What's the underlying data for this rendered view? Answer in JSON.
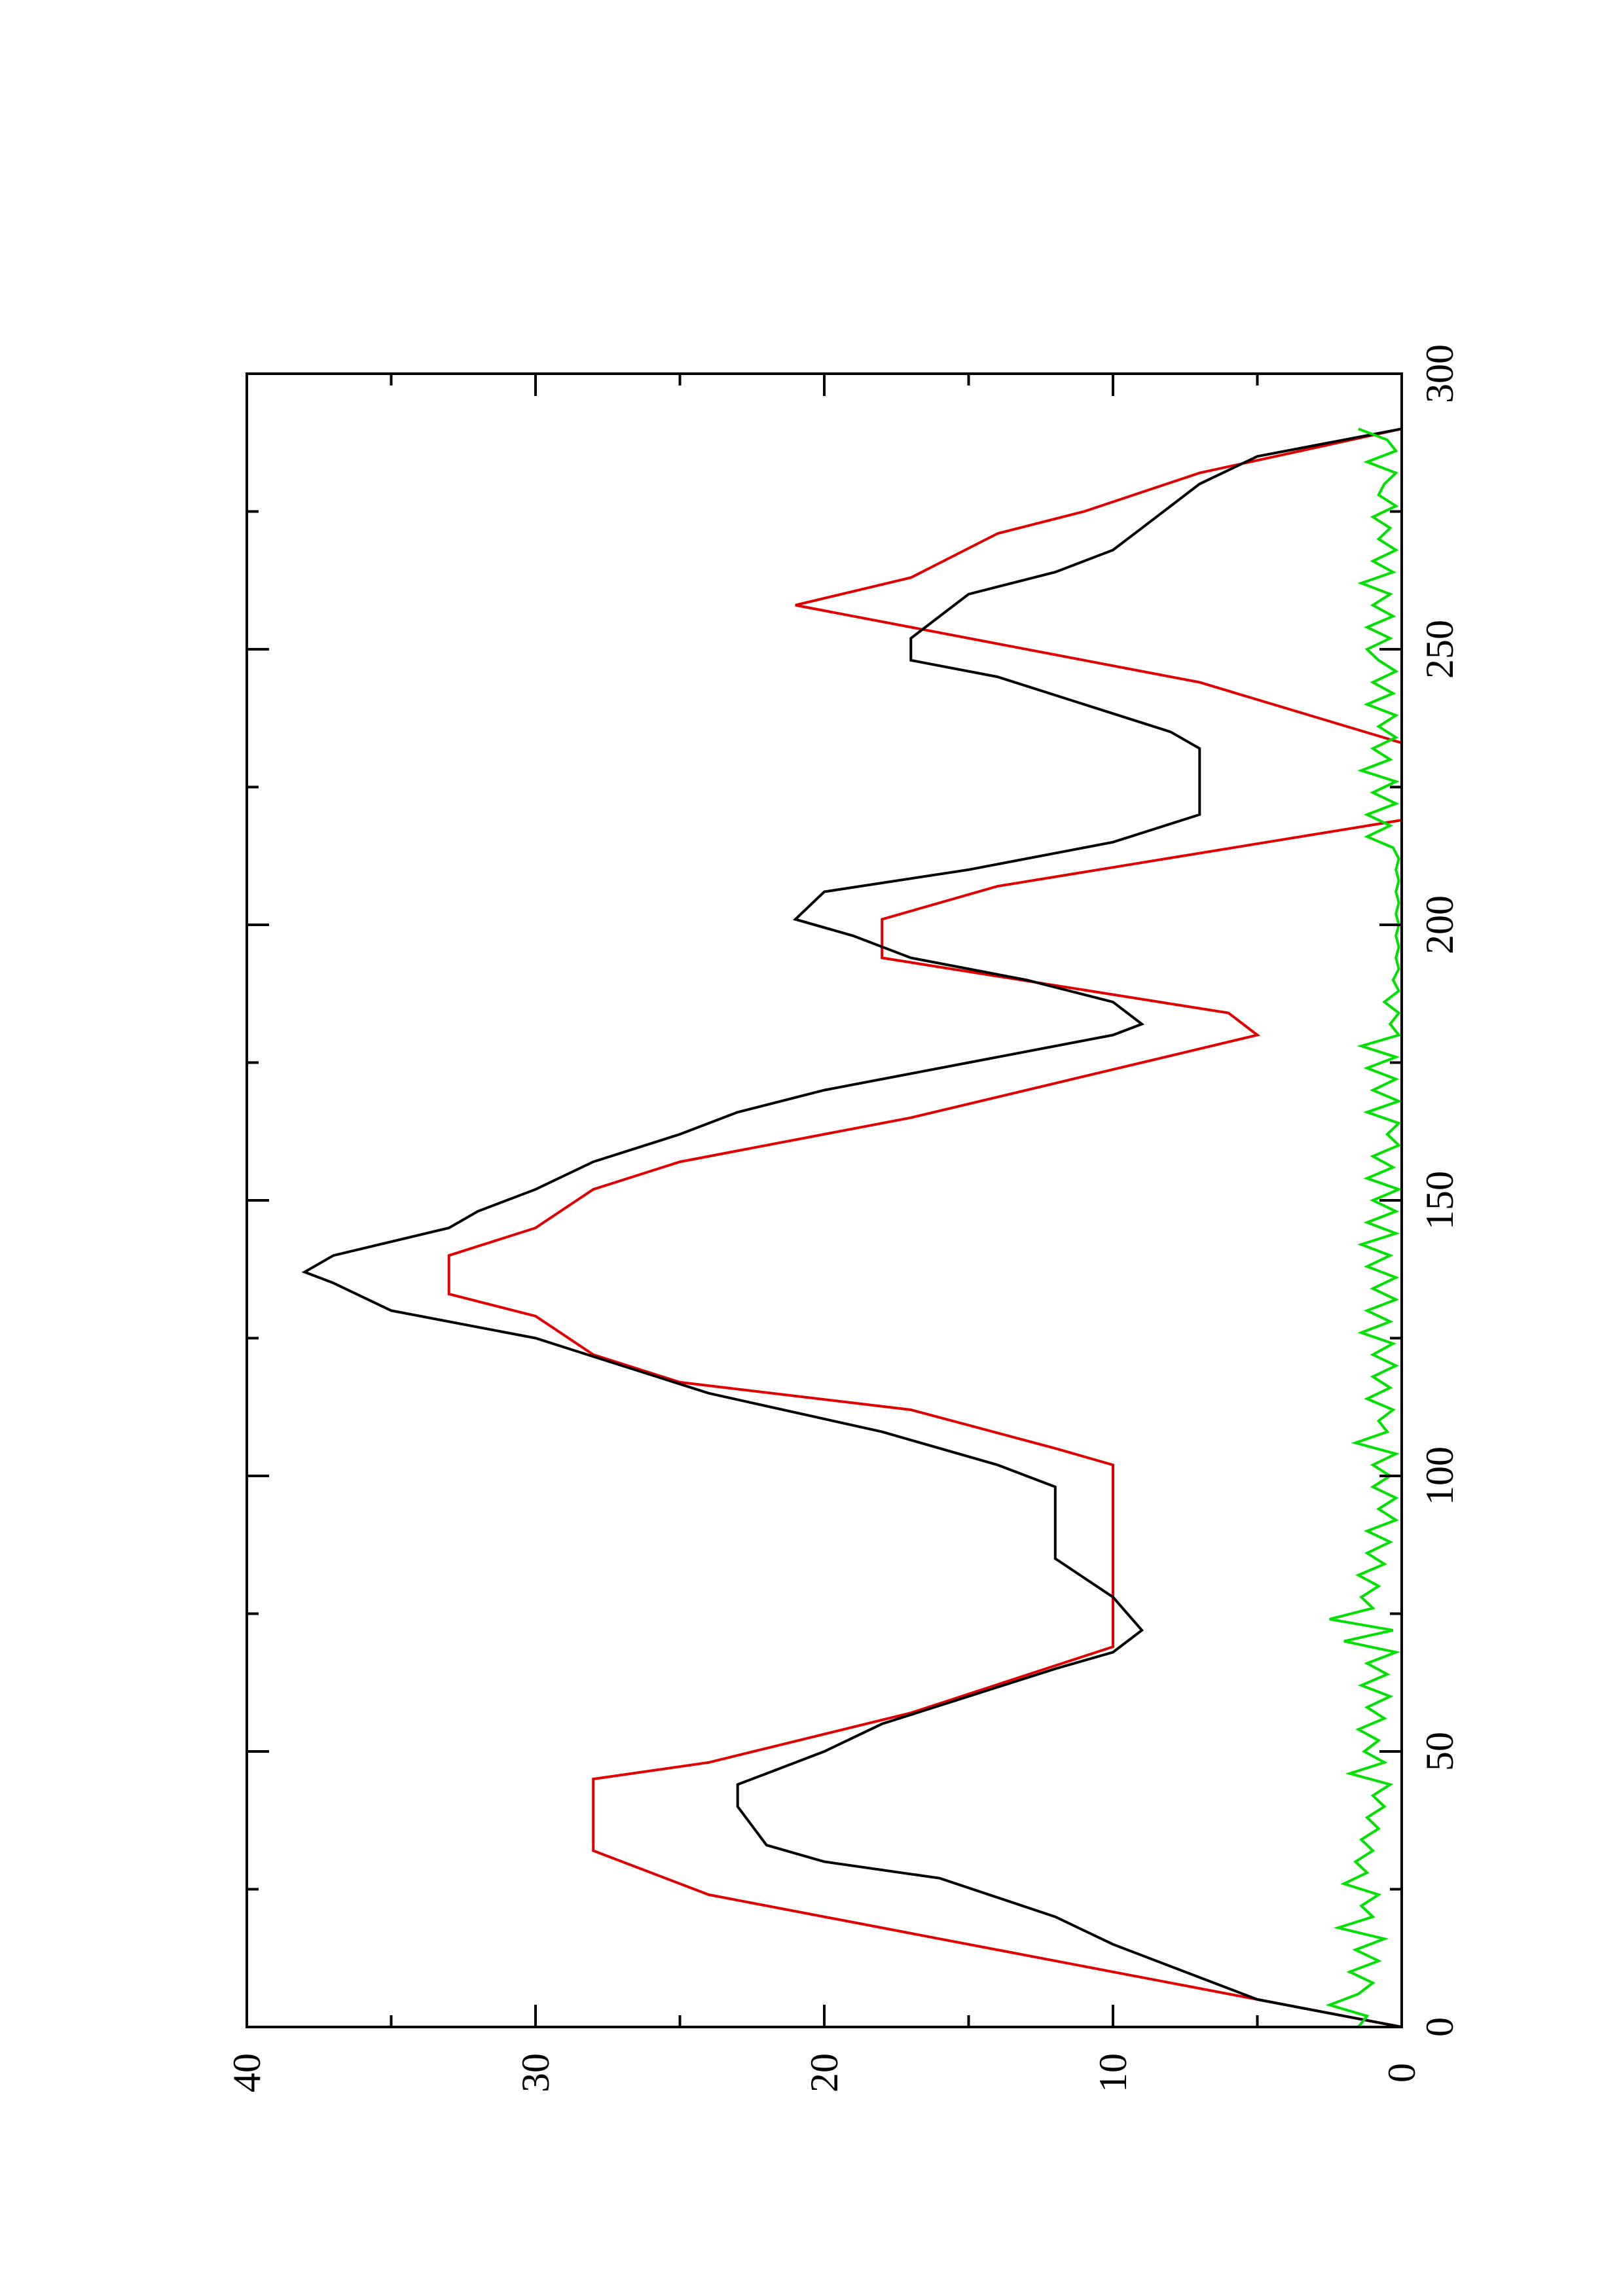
{
  "chart_data": {
    "type": "line",
    "orientation": "rotated 90° counter-clockwise (page is landscape plot turned to portrait)",
    "title": "",
    "xlabel": "",
    "ylabel": "",
    "xlim": [
      0,
      300
    ],
    "ylim": [
      0,
      40
    ],
    "x_ticks": [
      0,
      50,
      100,
      150,
      200,
      250,
      300
    ],
    "y_ticks": [
      0,
      10,
      20,
      30,
      40
    ],
    "x_minor_step": 25,
    "y_minor_step": 5,
    "grid": false,
    "legend": "none",
    "series": [
      {
        "color": "#e00000",
        "x": [
          0,
          5,
          10,
          17,
          24,
          32,
          45,
          48,
          57,
          69,
          102,
          105,
          112,
          117,
          122,
          129,
          133,
          140,
          145,
          152,
          157,
          165,
          180,
          184,
          194,
          201,
          207,
          219,
          233,
          244,
          258,
          263,
          271,
          275,
          282,
          290
        ],
        "y": [
          0,
          5,
          10,
          17,
          24,
          28,
          28,
          24,
          17,
          10,
          10,
          12,
          17,
          25,
          28,
          30,
          33,
          33,
          30,
          28,
          25,
          17,
          5,
          6,
          18,
          18,
          14,
          0,
          0,
          7,
          21,
          17,
          14,
          11,
          7,
          0
        ]
      },
      {
        "color": "#000000",
        "x": [
          0,
          2,
          5,
          9,
          15,
          20,
          27,
          30,
          33,
          40,
          44,
          46,
          50,
          55,
          60,
          65,
          68,
          72,
          78,
          85,
          88,
          91,
          93,
          98,
          102,
          108,
          115,
          120,
          125,
          130,
          135,
          137,
          140,
          145,
          148,
          152,
          157,
          162,
          166,
          170,
          175,
          180,
          182,
          186,
          190,
          194,
          198,
          201,
          206,
          210,
          215,
          220,
          225,
          232,
          235,
          240,
          245,
          248,
          252,
          256,
          260,
          264,
          268,
          272,
          276,
          280,
          285,
          290
        ],
        "y": [
          0,
          2,
          5,
          7,
          10,
          12,
          16,
          20,
          22,
          23,
          23,
          22,
          20,
          18,
          15,
          12,
          10,
          9,
          10,
          12,
          12,
          12,
          12,
          12,
          14,
          18,
          24,
          27,
          30,
          35,
          37,
          38,
          37,
          33,
          32,
          30,
          28,
          25,
          23,
          20,
          15,
          10,
          9,
          10,
          13,
          17,
          19,
          21,
          20,
          15,
          10,
          7,
          7,
          7,
          8,
          11,
          14,
          17,
          17,
          16,
          15,
          12,
          10,
          9,
          8,
          7,
          5,
          0
        ]
      },
      {
        "color": "#00e000",
        "x": [
          0,
          2,
          4,
          6,
          8,
          10,
          12,
          14,
          16,
          18,
          20,
          22,
          24,
          26,
          28,
          30,
          32,
          34,
          36,
          38,
          40,
          42,
          44,
          46,
          48,
          50,
          52,
          54,
          56,
          58,
          60,
          62,
          64,
          66,
          68,
          70,
          72,
          74,
          76,
          78,
          80,
          82,
          84,
          86,
          88,
          90,
          92,
          94,
          96,
          98,
          100,
          102,
          104,
          106,
          108,
          110,
          112,
          114,
          116,
          118,
          120,
          122,
          124,
          126,
          128,
          130,
          132,
          134,
          136,
          138,
          140,
          142,
          144,
          146,
          148,
          150,
          152,
          154,
          156,
          158,
          160,
          162,
          164,
          166,
          168,
          170,
          172,
          174,
          176,
          178,
          180,
          182,
          184,
          186,
          188,
          190,
          192,
          194,
          196,
          198,
          200,
          202,
          204,
          206,
          208,
          210,
          212,
          214,
          216,
          218,
          220,
          222,
          224,
          226,
          228,
          230,
          232,
          234,
          236,
          238,
          240,
          242,
          244,
          246,
          248,
          250,
          252,
          254,
          256,
          258,
          260,
          262,
          264,
          266,
          268,
          270,
          272,
          274,
          276,
          278,
          280,
          282,
          284,
          286,
          288,
          290
        ],
        "y": [
          1.5,
          1.2,
          2.5,
          1.5,
          1,
          1.8,
          0.8,
          1.6,
          0.6,
          2.2,
          1,
          1.4,
          0.8,
          2,
          1.2,
          1.6,
          1,
          1.4,
          0.8,
          1.2,
          0.6,
          1,
          0.4,
          1.8,
          0.6,
          1.3,
          0.8,
          1.5,
          0.6,
          1.2,
          0.4,
          1.4,
          0.5,
          1.2,
          0.2,
          2,
          0.3,
          2.5,
          1,
          1.4,
          0.8,
          1.5,
          0.6,
          1.2,
          0.4,
          1.2,
          0.2,
          0.8,
          0.2,
          1,
          0.4,
          1,
          0.2,
          1.6,
          0.5,
          0.8,
          0.3,
          1.2,
          0.4,
          1,
          0.2,
          1,
          0.3,
          1.4,
          0.4,
          1.2,
          0.2,
          1,
          0.2,
          1.2,
          0.4,
          1.4,
          0.2,
          1.2,
          0.2,
          1,
          0.1,
          1.2,
          0.3,
          1,
          0.1,
          0.5,
          0.1,
          1.2,
          0.1,
          1,
          0.2,
          1.2,
          0.2,
          1.4,
          0.1,
          0.4,
          0.1,
          0.6,
          0.1,
          0.3,
          0.1,
          0.2,
          0.1,
          0.2,
          0.1,
          0.2,
          0.1,
          0.2,
          0.1,
          0.2,
          0.1,
          0.3,
          1.2,
          0.4,
          1.2,
          0.2,
          1,
          0.2,
          1.4,
          0.4,
          1,
          0.2,
          0.8,
          0.2,
          1.2,
          0.3,
          1,
          0.2,
          0.8,
          1.2,
          0.4,
          1.2,
          0.3,
          1,
          0.4,
          1.4,
          0.3,
          1,
          0.2,
          0.8,
          0.4,
          1,
          0.2,
          0.8,
          0.6,
          0.2,
          1.2,
          0.2,
          0.5,
          1.5
        ]
      }
    ]
  }
}
